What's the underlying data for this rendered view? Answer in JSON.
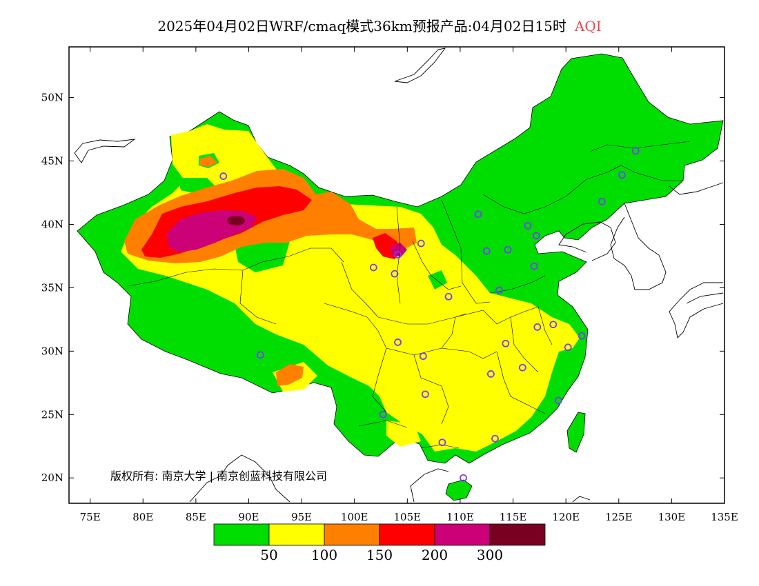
{
  "title": {
    "main": "2025年04月02日WRF/cmaq模式36km预报产品:04月02日15时",
    "variable": "AQI"
  },
  "colors": {
    "variable_label": "#e8484f",
    "good": "#00dd00",
    "moderate": "#ffff00",
    "usg": "#ff8000",
    "unhealthy": "#ff0000",
    "very_unhealthy": "#cc0077",
    "hazardous": "#7a0022",
    "station": "#7a3cff"
  },
  "axes": {
    "lon_range": [
      73,
      135
    ],
    "lat_range": [
      18,
      54
    ],
    "x_ticks": [
      "75E",
      "80E",
      "85E",
      "90E",
      "95E",
      "100E",
      "105E",
      "110E",
      "115E",
      "120E",
      "125E",
      "130E",
      "135E"
    ],
    "y_ticks": [
      "50N",
      "45N",
      "40N",
      "35N",
      "30N",
      "25N",
      "20N"
    ]
  },
  "colorbar": {
    "bins": [
      "0-50",
      "50-100",
      "100-150",
      "150-200",
      "200-300",
      "300+"
    ],
    "labels": [
      "50",
      "100",
      "150",
      "200",
      "300"
    ]
  },
  "copyright": "版权所有: 南京大学 | 南京创蓝科技有限公司",
  "stations": [
    [
      87.6,
      43.8
    ],
    [
      91.1,
      29.7
    ],
    [
      101.8,
      36.6
    ],
    [
      103.8,
      36.1
    ],
    [
      106.3,
      38.5
    ],
    [
      104.1,
      37.6
    ],
    [
      108.9,
      34.3
    ],
    [
      104.1,
      30.7
    ],
    [
      106.5,
      29.6
    ],
    [
      106.7,
      26.6
    ],
    [
      102.7,
      25.0
    ],
    [
      108.3,
      22.8
    ],
    [
      110.3,
      20.0
    ],
    [
      113.3,
      23.1
    ],
    [
      112.9,
      28.2
    ],
    [
      114.3,
      30.6
    ],
    [
      115.9,
      28.7
    ],
    [
      117.3,
      31.9
    ],
    [
      118.8,
      32.1
    ],
    [
      120.2,
      30.3
    ],
    [
      121.5,
      31.2
    ],
    [
      119.3,
      26.1
    ],
    [
      113.7,
      34.8
    ],
    [
      117.0,
      36.7
    ],
    [
      114.5,
      38.0
    ],
    [
      112.5,
      37.9
    ],
    [
      116.4,
      39.9
    ],
    [
      117.2,
      39.1
    ],
    [
      111.7,
      40.8
    ],
    [
      123.4,
      41.8
    ],
    [
      125.3,
      43.9
    ],
    [
      126.6,
      45.8
    ]
  ]
}
